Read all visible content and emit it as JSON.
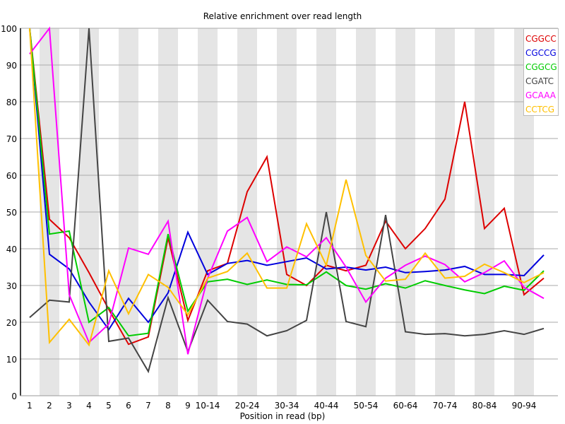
{
  "chart_data": {
    "type": "line",
    "title": "Relative enrichment over read length",
    "xlabel": "Position in read (bp)",
    "ylabel": "",
    "ylim": [
      0,
      100
    ],
    "yticks": [
      0,
      10,
      20,
      30,
      40,
      50,
      60,
      70,
      80,
      90,
      100
    ],
    "grid": "horizontal",
    "legend": "top-right",
    "categories": [
      "1",
      "2",
      "3",
      "4",
      "5",
      "6",
      "7",
      "8",
      "9",
      "10-14",
      "15-19",
      "20-24",
      "25-29",
      "30-34",
      "35-39",
      "40-44",
      "45-49",
      "50-54",
      "55-59",
      "60-64",
      "65-69",
      "70-74",
      "75-79",
      "80-84",
      "85-89",
      "90-94",
      "95-99"
    ],
    "xtick_labels": [
      "1",
      "2",
      "3",
      "4",
      "5",
      "6",
      "7",
      "8",
      "9",
      "10-14",
      "",
      "20-24",
      "",
      "30-34",
      "",
      "40-44",
      "",
      "50-54",
      "",
      "60-64",
      "",
      "70-74",
      "",
      "80-84",
      "",
      "90-94",
      ""
    ],
    "series": [
      {
        "name": "CGGCC",
        "color": "#dd0000",
        "values": [
          100,
          48,
          43,
          33.5,
          23.5,
          14,
          16,
          43,
          20.5,
          34,
          36,
          55.5,
          65,
          33,
          30,
          35.5,
          34,
          35.5,
          47.5,
          40,
          45.5,
          53.5,
          80,
          45.5,
          51,
          27.5,
          32
        ]
      },
      {
        "name": "CGCCG",
        "color": "#0000dd",
        "values": [
          100,
          38.5,
          34.5,
          25.5,
          18,
          26.5,
          20,
          28,
          44.5,
          33,
          36,
          36.8,
          35.5,
          36.5,
          37.5,
          34.5,
          35,
          34.2,
          35,
          33.5,
          33.8,
          34.2,
          35.2,
          33,
          33,
          32.7,
          38.3
        ]
      },
      {
        "name": "CGGCG",
        "color": "#00cc00",
        "values": [
          100,
          44,
          44.8,
          20,
          24,
          16.3,
          17,
          44,
          23,
          31,
          31.7,
          30.3,
          31.5,
          30.3,
          30.2,
          33.7,
          30,
          29,
          30.5,
          29.3,
          31.3,
          30,
          28.8,
          27.8,
          29.8,
          28.7,
          34
        ]
      },
      {
        "name": "CGATC",
        "color": "#444444",
        "values": [
          21.3,
          26,
          25.5,
          100,
          14.8,
          15.7,
          6.6,
          26.7,
          12,
          26,
          20.2,
          19.5,
          16.3,
          17.7,
          20.5,
          50,
          20.2,
          18.8,
          49.2,
          17.4,
          16.7,
          16.9,
          16.3,
          16.7,
          17.7,
          16.7,
          18.3
        ]
      },
      {
        "name": "GCAAA",
        "color": "#ff00ff",
        "values": [
          93,
          100,
          27.5,
          14.5,
          19.5,
          40.2,
          38.5,
          47.5,
          11.3,
          32,
          44.8,
          48.5,
          36.5,
          40.5,
          37.8,
          43,
          35,
          25.5,
          32,
          35.5,
          38,
          35.7,
          31,
          33.5,
          36.7,
          29.5,
          26.5
        ]
      },
      {
        "name": "CCTCG",
        "color": "#ffc000",
        "values": [
          100,
          14.5,
          20.8,
          13.8,
          34,
          22.3,
          33,
          29.5,
          22,
          32,
          33.8,
          38.8,
          29.3,
          29.3,
          46.8,
          35.5,
          58.8,
          38.2,
          31.2,
          31.7,
          38.8,
          32,
          32.5,
          35.8,
          33.5,
          30.8,
          33.5
        ]
      }
    ]
  }
}
